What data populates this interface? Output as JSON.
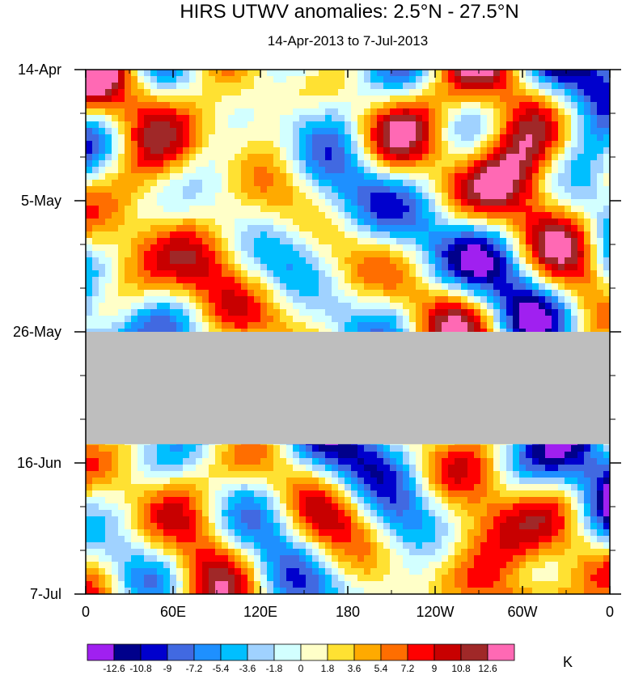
{
  "chart_data": {
    "type": "heatmap",
    "title": "HIRS UTWV anomalies: 2.5°N - 27.5°N",
    "subtitle": "14-Apr-2013 to 7-Jul-2013",
    "xlabel": "",
    "ylabel": "",
    "x_ticks": [
      "0",
      "60E",
      "120E",
      "180",
      "120W",
      "60W",
      "0"
    ],
    "x_tick_longitudes": [
      0,
      60,
      120,
      180,
      240,
      300,
      360
    ],
    "xlim": [
      0,
      360
    ],
    "y_ticks": [
      "14-Apr",
      "5-May",
      "26-May",
      "16-Jun",
      "7-Jul"
    ],
    "y_tick_dates": [
      "2013-04-14",
      "2013-05-05",
      "2013-05-26",
      "2013-06-16",
      "2013-07-07"
    ],
    "ylim": [
      "2013-04-14",
      "2013-07-07"
    ],
    "missing_data": {
      "date_range": [
        "2013-05-26",
        "2013-06-13"
      ],
      "color": "#bebebe"
    },
    "colorbar": {
      "unit": "K",
      "levels": [
        "-12.6",
        "-10.8",
        "-9",
        "-7.2",
        "-5.4",
        "-3.6",
        "-1.8",
        "0",
        "1.8",
        "3.6",
        "5.4",
        "7.2",
        "9",
        "10.8",
        "12.6"
      ],
      "colors": [
        "#a020f0",
        "#00008b",
        "#0000cd",
        "#4169e1",
        "#1e90ff",
        "#00bfff",
        "#a0d2ff",
        "#d2ffff",
        "#ffffc8",
        "#ffe132",
        "#ffaa00",
        "#ff6e00",
        "#ff0000",
        "#c80000",
        "#a02828",
        "#ff69b4"
      ]
    }
  }
}
